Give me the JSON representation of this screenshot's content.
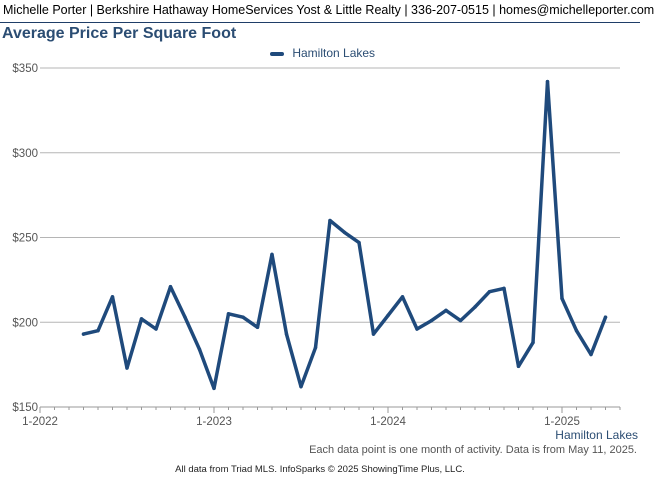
{
  "header": {
    "text": "Michelle Porter | Berkshire Hathaway HomeServices Yost & Little Realty | 336-207-0515 | homes@michelleporter.com"
  },
  "colors": {
    "series": "#1f4a7c",
    "title": "#2b4d73",
    "grid": "#b5b5b5"
  },
  "chart_data": {
    "type": "line",
    "title": "Average Price Per Square Foot",
    "xlabel": "",
    "ylabel": "",
    "ylim": [
      150,
      350
    ],
    "yticks": [
      150,
      200,
      250,
      300,
      350
    ],
    "ytick_labels": [
      "$150",
      "$200",
      "$250",
      "$300",
      "$350"
    ],
    "xtick_labels": [
      "1-2022",
      "1-2023",
      "1-2024",
      "1-2025"
    ],
    "xlim": [
      "2022-01",
      "2025-05"
    ],
    "grid": true,
    "legend": "top-center",
    "corner_label": "Hamilton Lakes",
    "series": [
      {
        "name": "Hamilton Lakes",
        "x": [
          "2022-04",
          "2022-05",
          "2022-06",
          "2022-07",
          "2022-08",
          "2022-09",
          "2022-10",
          "2022-11",
          "2022-12",
          "2023-01",
          "2023-02",
          "2023-03",
          "2023-04",
          "2023-05",
          "2023-06",
          "2023-07",
          "2023-08",
          "2023-09",
          "2023-10",
          "2023-11",
          "2023-12",
          "2024-01",
          "2024-02",
          "2024-03",
          "2024-04",
          "2024-05",
          "2024-06",
          "2024-07",
          "2024-08",
          "2024-09",
          "2024-10",
          "2024-11",
          "2024-12",
          "2025-01",
          "2025-02",
          "2025-03",
          "2025-04"
        ],
        "values": [
          193,
          195,
          215,
          173,
          202,
          196,
          221,
          203,
          184,
          161,
          205,
          203,
          197,
          240,
          193,
          162,
          185,
          260,
          253,
          247,
          193,
          204,
          215,
          196,
          201,
          207,
          201,
          209,
          218,
          220,
          174,
          188,
          342,
          214,
          195,
          181,
          203
        ]
      }
    ]
  },
  "footer": {
    "note": "Each data point is one month of activity. Data is from May 11, 2025.",
    "source": "All data from Triad MLS. InfoSparks © 2025 ShowingTime Plus, LLC."
  }
}
